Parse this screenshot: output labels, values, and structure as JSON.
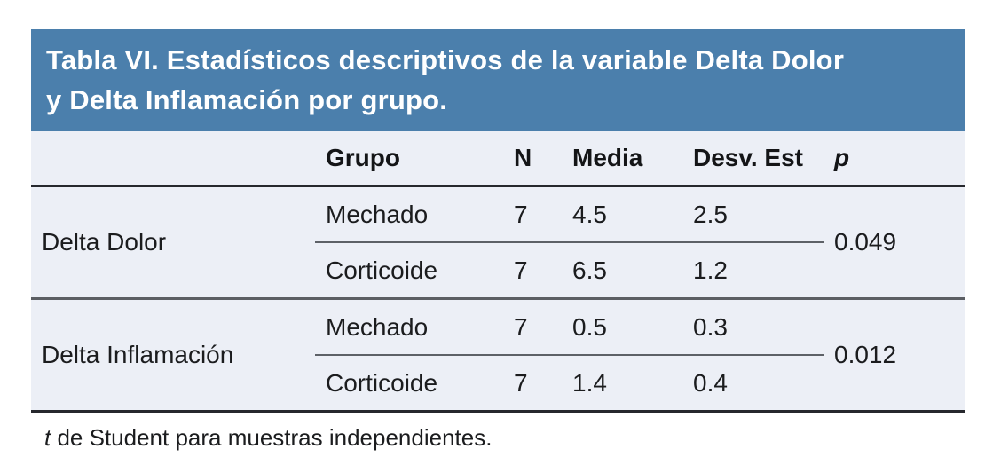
{
  "accent_color": "#4B7FAC",
  "table_background": "#ECEFF6",
  "title_lines": [
    "Tabla VI. Estadísticos descriptivos de la variable Delta Dolor",
    "y Delta Inflamación por grupo."
  ],
  "columns": {
    "variable": "",
    "grupo": "Grupo",
    "n": "N",
    "media": "Media",
    "desv": "Desv. Est",
    "p": "p"
  },
  "groups": [
    {
      "label": "Delta Dolor",
      "p": "0.049",
      "rows": [
        {
          "grupo": "Mechado",
          "n": "7",
          "media": "4.5",
          "desv": "2.5"
        },
        {
          "grupo": "Corticoide",
          "n": "7",
          "media": "6.5",
          "desv": "1.2"
        }
      ]
    },
    {
      "label": "Delta Inflamación",
      "p": "0.012",
      "rows": [
        {
          "grupo": "Mechado",
          "n": "7",
          "media": "0.5",
          "desv": "0.3"
        },
        {
          "grupo": "Corticoide",
          "n": "7",
          "media": "1.4",
          "desv": "0.4"
        }
      ]
    }
  ],
  "footnote": {
    "lead_italic": "t",
    "text": " de Student para muestras independientes."
  }
}
